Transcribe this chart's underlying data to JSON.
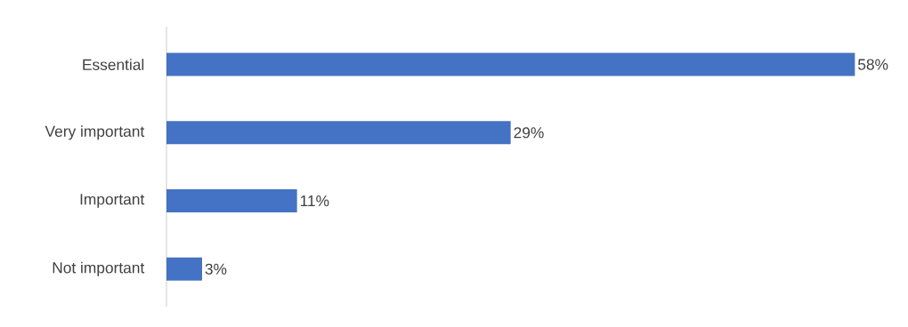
{
  "chart_data": {
    "type": "bar",
    "orientation": "horizontal",
    "categories": [
      "Essential",
      "Very important",
      "Important",
      "Not important"
    ],
    "values": [
      58,
      29,
      11,
      3
    ],
    "value_labels": [
      "58%",
      "29%",
      "11%",
      "3%"
    ],
    "color": "#4472c4",
    "tick_labels": "y"
  }
}
